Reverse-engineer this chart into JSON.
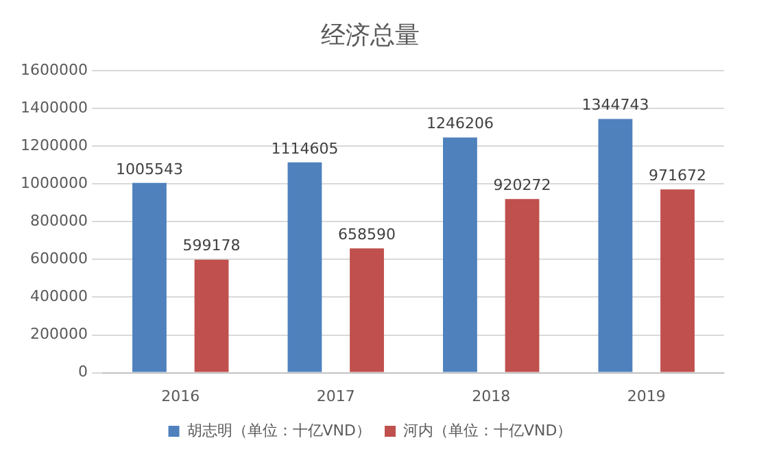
{
  "chart_data": {
    "type": "bar",
    "title": "经济总量",
    "categories": [
      "2016",
      "2017",
      "2018",
      "2019"
    ],
    "series": [
      {
        "name": "胡志明（单位：十亿VND）",
        "color": "#4f81bd",
        "values": [
          1005543,
          1114605,
          1246206,
          1344743
        ]
      },
      {
        "name": "河内（单位：十亿VND）",
        "color": "#c0504d",
        "values": [
          599178,
          658590,
          920272,
          971672
        ]
      }
    ],
    "ylim": [
      0,
      1600000
    ],
    "yticks": [
      0,
      200000,
      400000,
      600000,
      800000,
      1000000,
      1200000,
      1400000,
      1600000
    ],
    "grid": "y",
    "legend": "bottom",
    "data_labels": true
  }
}
